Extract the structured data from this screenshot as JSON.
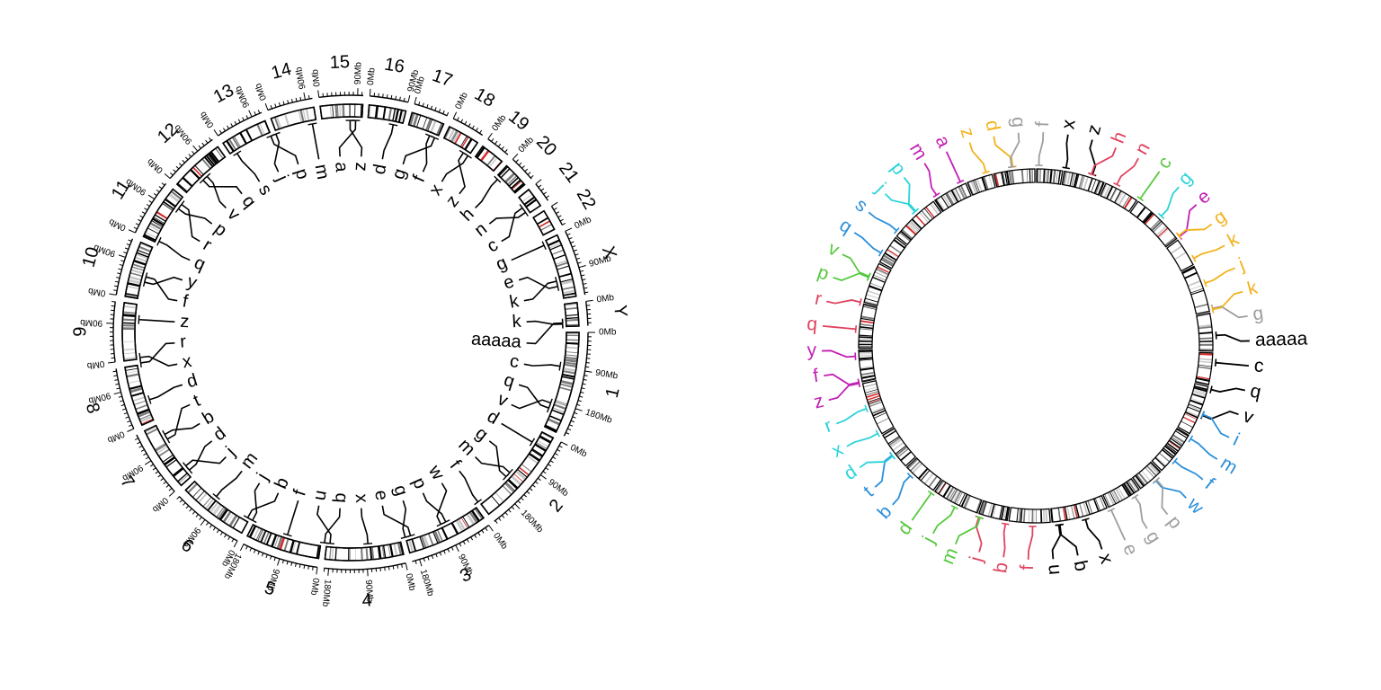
{
  "left_plot": {
    "chromosomes": [
      {
        "name": "1",
        "size": 249,
        "ticks": [
          "0Mb",
          "90Mb",
          "180Mb"
        ]
      },
      {
        "name": "2",
        "size": 243,
        "ticks": [
          "0Mb",
          "90Mb",
          "180Mb"
        ]
      },
      {
        "name": "3",
        "size": 198,
        "ticks": [
          "0Mb",
          "90Mb",
          "180Mb"
        ]
      },
      {
        "name": "4",
        "size": 191,
        "ticks": [
          "0Mb",
          "90Mb",
          "180Mb"
        ]
      },
      {
        "name": "5",
        "size": 181,
        "ticks": [
          "0Mb",
          "90Mb",
          "180Mb"
        ]
      },
      {
        "name": "6",
        "size": 171,
        "ticks": [
          "0Mb",
          "90Mb"
        ]
      },
      {
        "name": "7",
        "size": 159,
        "ticks": [
          "0Mb",
          "90Mb"
        ]
      },
      {
        "name": "8",
        "size": 146,
        "ticks": [
          "0Mb",
          "90Mb"
        ]
      },
      {
        "name": "9",
        "size": 141,
        "ticks": [
          "0Mb",
          "90Mb"
        ]
      },
      {
        "name": "10",
        "size": 136,
        "ticks": [
          "0Mb",
          "90Mb"
        ]
      },
      {
        "name": "11",
        "size": 135,
        "ticks": [
          "0Mb",
          "90Mb"
        ]
      },
      {
        "name": "12",
        "size": 134,
        "ticks": [
          "0Mb",
          "90Mb"
        ]
      },
      {
        "name": "13",
        "size": 115,
        "ticks": [
          "0Mb",
          "90Mb"
        ]
      },
      {
        "name": "14",
        "size": 107,
        "ticks": [
          "0Mb",
          "90Mb"
        ]
      },
      {
        "name": "15",
        "size": 103,
        "ticks": [
          "0Mb",
          "90Mb"
        ]
      },
      {
        "name": "16",
        "size": 90,
        "ticks": [
          "0Mb",
          "90Mb"
        ]
      },
      {
        "name": "17",
        "size": 81,
        "ticks": [
          "0Mb"
        ]
      },
      {
        "name": "18",
        "size": 78,
        "ticks": [
          "0Mb"
        ]
      },
      {
        "name": "19",
        "size": 59,
        "ticks": [
          "0Mb"
        ]
      },
      {
        "name": "20",
        "size": 63,
        "ticks": [
          "0Mb"
        ]
      },
      {
        "name": "21",
        "size": 48,
        "ticks": []
      },
      {
        "name": "22",
        "size": 51,
        "ticks": []
      },
      {
        "name": "X",
        "size": 155,
        "ticks": [
          "0Mb",
          "90Mb"
        ]
      },
      {
        "name": "Y",
        "size": 57,
        "ticks": [
          "0Mb"
        ]
      }
    ],
    "labels": [
      "aaaaa",
      "c",
      "q",
      "v",
      "d",
      "g",
      "m",
      "f",
      "w",
      "p",
      "g",
      "e",
      "x",
      "b",
      "u",
      "f",
      "b",
      "j",
      "m",
      "j",
      "d",
      "b",
      "t",
      "d",
      "x",
      "r",
      "z",
      "f",
      "y",
      "q",
      "r",
      "p",
      "v",
      "q",
      "s",
      "j",
      "p",
      "m",
      "a",
      "z",
      "d",
      "g",
      "f",
      "x",
      "z",
      "h",
      "n",
      "c",
      "g",
      "e",
      "k",
      "k"
    ]
  },
  "right_plot": {
    "labels": [
      {
        "text": "g",
        "color": "#9e9e9e"
      },
      {
        "text": "aaaaa",
        "color": "#000000"
      },
      {
        "text": "c",
        "color": "#000000"
      },
      {
        "text": "q",
        "color": "#000000"
      },
      {
        "text": "v",
        "color": "#000000"
      },
      {
        "text": "i",
        "color": "#2b8fd9"
      },
      {
        "text": "m",
        "color": "#2b8fd9"
      },
      {
        "text": "f",
        "color": "#2b8fd9"
      },
      {
        "text": "w",
        "color": "#2b8fd9"
      },
      {
        "text": "p",
        "color": "#9e9e9e"
      },
      {
        "text": "g",
        "color": "#9e9e9e"
      },
      {
        "text": "e",
        "color": "#9e9e9e"
      },
      {
        "text": "x",
        "color": "#000000"
      },
      {
        "text": "b",
        "color": "#000000"
      },
      {
        "text": "u",
        "color": "#000000"
      },
      {
        "text": "f",
        "color": "#e0435f"
      },
      {
        "text": "b",
        "color": "#e0435f"
      },
      {
        "text": "j",
        "color": "#e0435f"
      },
      {
        "text": "m",
        "color": "#55c83e"
      },
      {
        "text": "j",
        "color": "#55c83e"
      },
      {
        "text": "d",
        "color": "#55c83e"
      },
      {
        "text": "b",
        "color": "#2b8fd9"
      },
      {
        "text": "t",
        "color": "#2b8fd9"
      },
      {
        "text": "d",
        "color": "#2bd3d9"
      },
      {
        "text": "x",
        "color": "#2bd3d9"
      },
      {
        "text": "r",
        "color": "#2bd3d9"
      },
      {
        "text": "z",
        "color": "#c21fb4"
      },
      {
        "text": "f",
        "color": "#c21fb4"
      },
      {
        "text": "y",
        "color": "#c21fb4"
      },
      {
        "text": "q",
        "color": "#e0435f"
      },
      {
        "text": "r",
        "color": "#e0435f"
      },
      {
        "text": "p",
        "color": "#55c83e"
      },
      {
        "text": "v",
        "color": "#55c83e"
      },
      {
        "text": "q",
        "color": "#2b8fd9"
      },
      {
        "text": "s",
        "color": "#2b8fd9"
      },
      {
        "text": "j",
        "color": "#2bd3d9"
      },
      {
        "text": "p",
        "color": "#2bd3d9"
      },
      {
        "text": "m",
        "color": "#c21fb4"
      },
      {
        "text": "a",
        "color": "#c21fb4"
      },
      {
        "text": "z",
        "color": "#f2b21c"
      },
      {
        "text": "d",
        "color": "#f2b21c"
      },
      {
        "text": "g",
        "color": "#9e9e9e"
      },
      {
        "text": "f",
        "color": "#9e9e9e"
      },
      {
        "text": "x",
        "color": "#000000"
      },
      {
        "text": "z",
        "color": "#000000"
      },
      {
        "text": "h",
        "color": "#e0435f"
      },
      {
        "text": "n",
        "color": "#e0435f"
      },
      {
        "text": "c",
        "color": "#55c83e"
      },
      {
        "text": "g",
        "color": "#2bd3d9"
      },
      {
        "text": "e",
        "color": "#c21fb4"
      },
      {
        "text": "g",
        "color": "#f2b21c"
      },
      {
        "text": "k",
        "color": "#f2b21c"
      },
      {
        "text": "j",
        "color": "#f2b21c"
      },
      {
        "text": "k",
        "color": "#f2b21c"
      }
    ]
  }
}
